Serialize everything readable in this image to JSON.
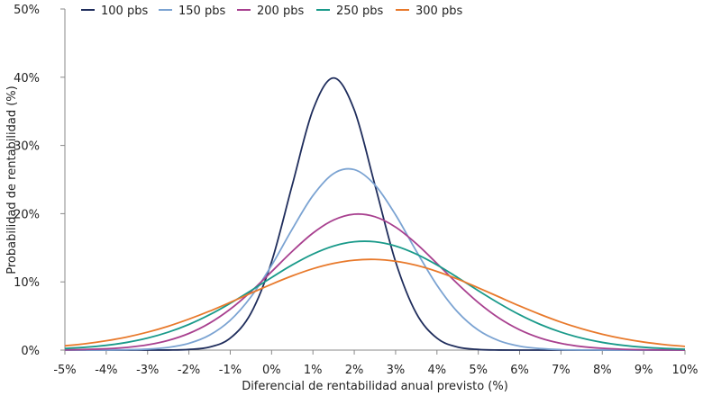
{
  "chart_data": {
    "type": "line",
    "title": "",
    "xlabel": "Diferencial de rentabilidad anual previsto (%)",
    "ylabel": "Probabilidad de rentabilidad (%)",
    "xlim": [
      -5,
      10
    ],
    "ylim": [
      0,
      50
    ],
    "x_ticks": [
      "-5%",
      "-4%",
      "-3%",
      "-2%",
      "-1%",
      "0%",
      "1%",
      "2%",
      "3%",
      "4%",
      "5%",
      "6%",
      "7%",
      "8%",
      "9%",
      "10%"
    ],
    "y_ticks": [
      "0%",
      "10%",
      "20%",
      "30%",
      "40%",
      "50%"
    ],
    "grid": false,
    "legend_position": "top",
    "x": [
      -5,
      -4.5,
      -4,
      -3.5,
      -3,
      -2.5,
      -2,
      -1.5,
      -1,
      -0.5,
      0,
      0.5,
      1,
      1.5,
      2,
      2.5,
      3,
      3.5,
      4,
      4.5,
      5,
      5.5,
      6,
      6.5,
      7,
      7.5,
      8,
      8.5,
      9,
      9.5,
      10
    ],
    "series": [
      {
        "name": "100 pbs",
        "color": "#1f2d5c",
        "values": [
          0,
          0,
          0,
          0,
          0,
          0.01,
          0.09,
          0.44,
          1.75,
          5.4,
          12.95,
          24.2,
          35.21,
          39.89,
          35.21,
          24.2,
          12.95,
          5.4,
          1.75,
          0.44,
          0.09,
          0.01,
          0,
          0,
          0,
          0,
          0,
          0,
          0,
          0,
          0
        ]
      },
      {
        "name": "150 pbs",
        "color": "#7ba3d2",
        "values": [
          0,
          0,
          0.01,
          0.05,
          0.14,
          0.4,
          0.99,
          2.2,
          4.37,
          7.8,
          12.43,
          17.74,
          22.65,
          25.88,
          26.46,
          24.21,
          19.82,
          14.52,
          9.52,
          5.59,
          2.93,
          1.38,
          0.58,
          0.22,
          0.07,
          0.02,
          0.01,
          0,
          0,
          0,
          0
        ]
      },
      {
        "name": "200 pbs",
        "color": "#a8408f",
        "values": [
          0.04,
          0.09,
          0.19,
          0.4,
          0.77,
          1.42,
          2.44,
          3.95,
          6.0,
          8.57,
          11.5,
          14.48,
          17.15,
          19.07,
          19.92,
          19.55,
          18.03,
          15.61,
          12.7,
          9.71,
          6.97,
          4.7,
          2.98,
          1.77,
          0.99,
          0.52,
          0.26,
          0.12,
          0.05,
          0.02,
          0.01
        ]
      },
      {
        "name": "250 pbs",
        "color": "#1a9a8a",
        "values": [
          0.24,
          0.42,
          0.7,
          1.13,
          1.76,
          2.63,
          3.76,
          5.18,
          6.86,
          8.71,
          10.64,
          12.49,
          14.08,
          15.26,
          15.88,
          15.88,
          15.26,
          14.08,
          12.49,
          10.64,
          8.71,
          6.86,
          5.18,
          3.76,
          2.63,
          1.76,
          1.13,
          0.7,
          0.42,
          0.24,
          0.13
        ]
      },
      {
        "name": "300 pbs",
        "color": "#e8792b",
        "values": [
          0.63,
          0.94,
          1.37,
          1.92,
          2.63,
          3.5,
          4.54,
          5.71,
          7.0,
          8.34,
          9.66,
          10.88,
          11.93,
          12.71,
          13.18,
          13.29,
          13.03,
          12.43,
          11.53,
          10.41,
          9.13,
          7.8,
          6.47,
          5.23,
          4.1,
          3.13,
          2.33,
          1.68,
          1.18,
          0.81,
          0.54
        ]
      }
    ]
  }
}
